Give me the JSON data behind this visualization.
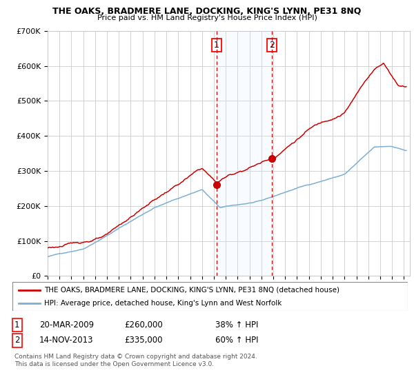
{
  "title": "THE OAKS, BRADMERE LANE, DOCKING, KING'S LYNN, PE31 8NQ",
  "subtitle": "Price paid vs. HM Land Registry's House Price Index (HPI)",
  "legend_line1": "THE OAKS, BRADMERE LANE, DOCKING, KING'S LYNN, PE31 8NQ (detached house)",
  "legend_line2": "HPI: Average price, detached house, King's Lynn and West Norfolk",
  "table_row1_num": "1",
  "table_row1_date": "20-MAR-2009",
  "table_row1_price": "£260,000",
  "table_row1_hpi": "38% ↑ HPI",
  "table_row2_num": "2",
  "table_row2_date": "14-NOV-2013",
  "table_row2_price": "£335,000",
  "table_row2_hpi": "60% ↑ HPI",
  "footnote1": "Contains HM Land Registry data © Crown copyright and database right 2024.",
  "footnote2": "This data is licensed under the Open Government Licence v3.0.",
  "red_line_color": "#cc0000",
  "blue_line_color": "#7bafd4",
  "bg_color": "#ffffff",
  "grid_color": "#cccccc",
  "shading_color": "#ddeeff",
  "marker1_x_year": 2009.22,
  "marker1_y": 260000,
  "marker2_x_year": 2013.88,
  "marker2_y": 335000,
  "vline1_x": 2009.22,
  "vline2_x": 2013.88,
  "ylim": [
    0,
    700000
  ],
  "xlim_start": 1995,
  "xlim_end": 2025.5
}
